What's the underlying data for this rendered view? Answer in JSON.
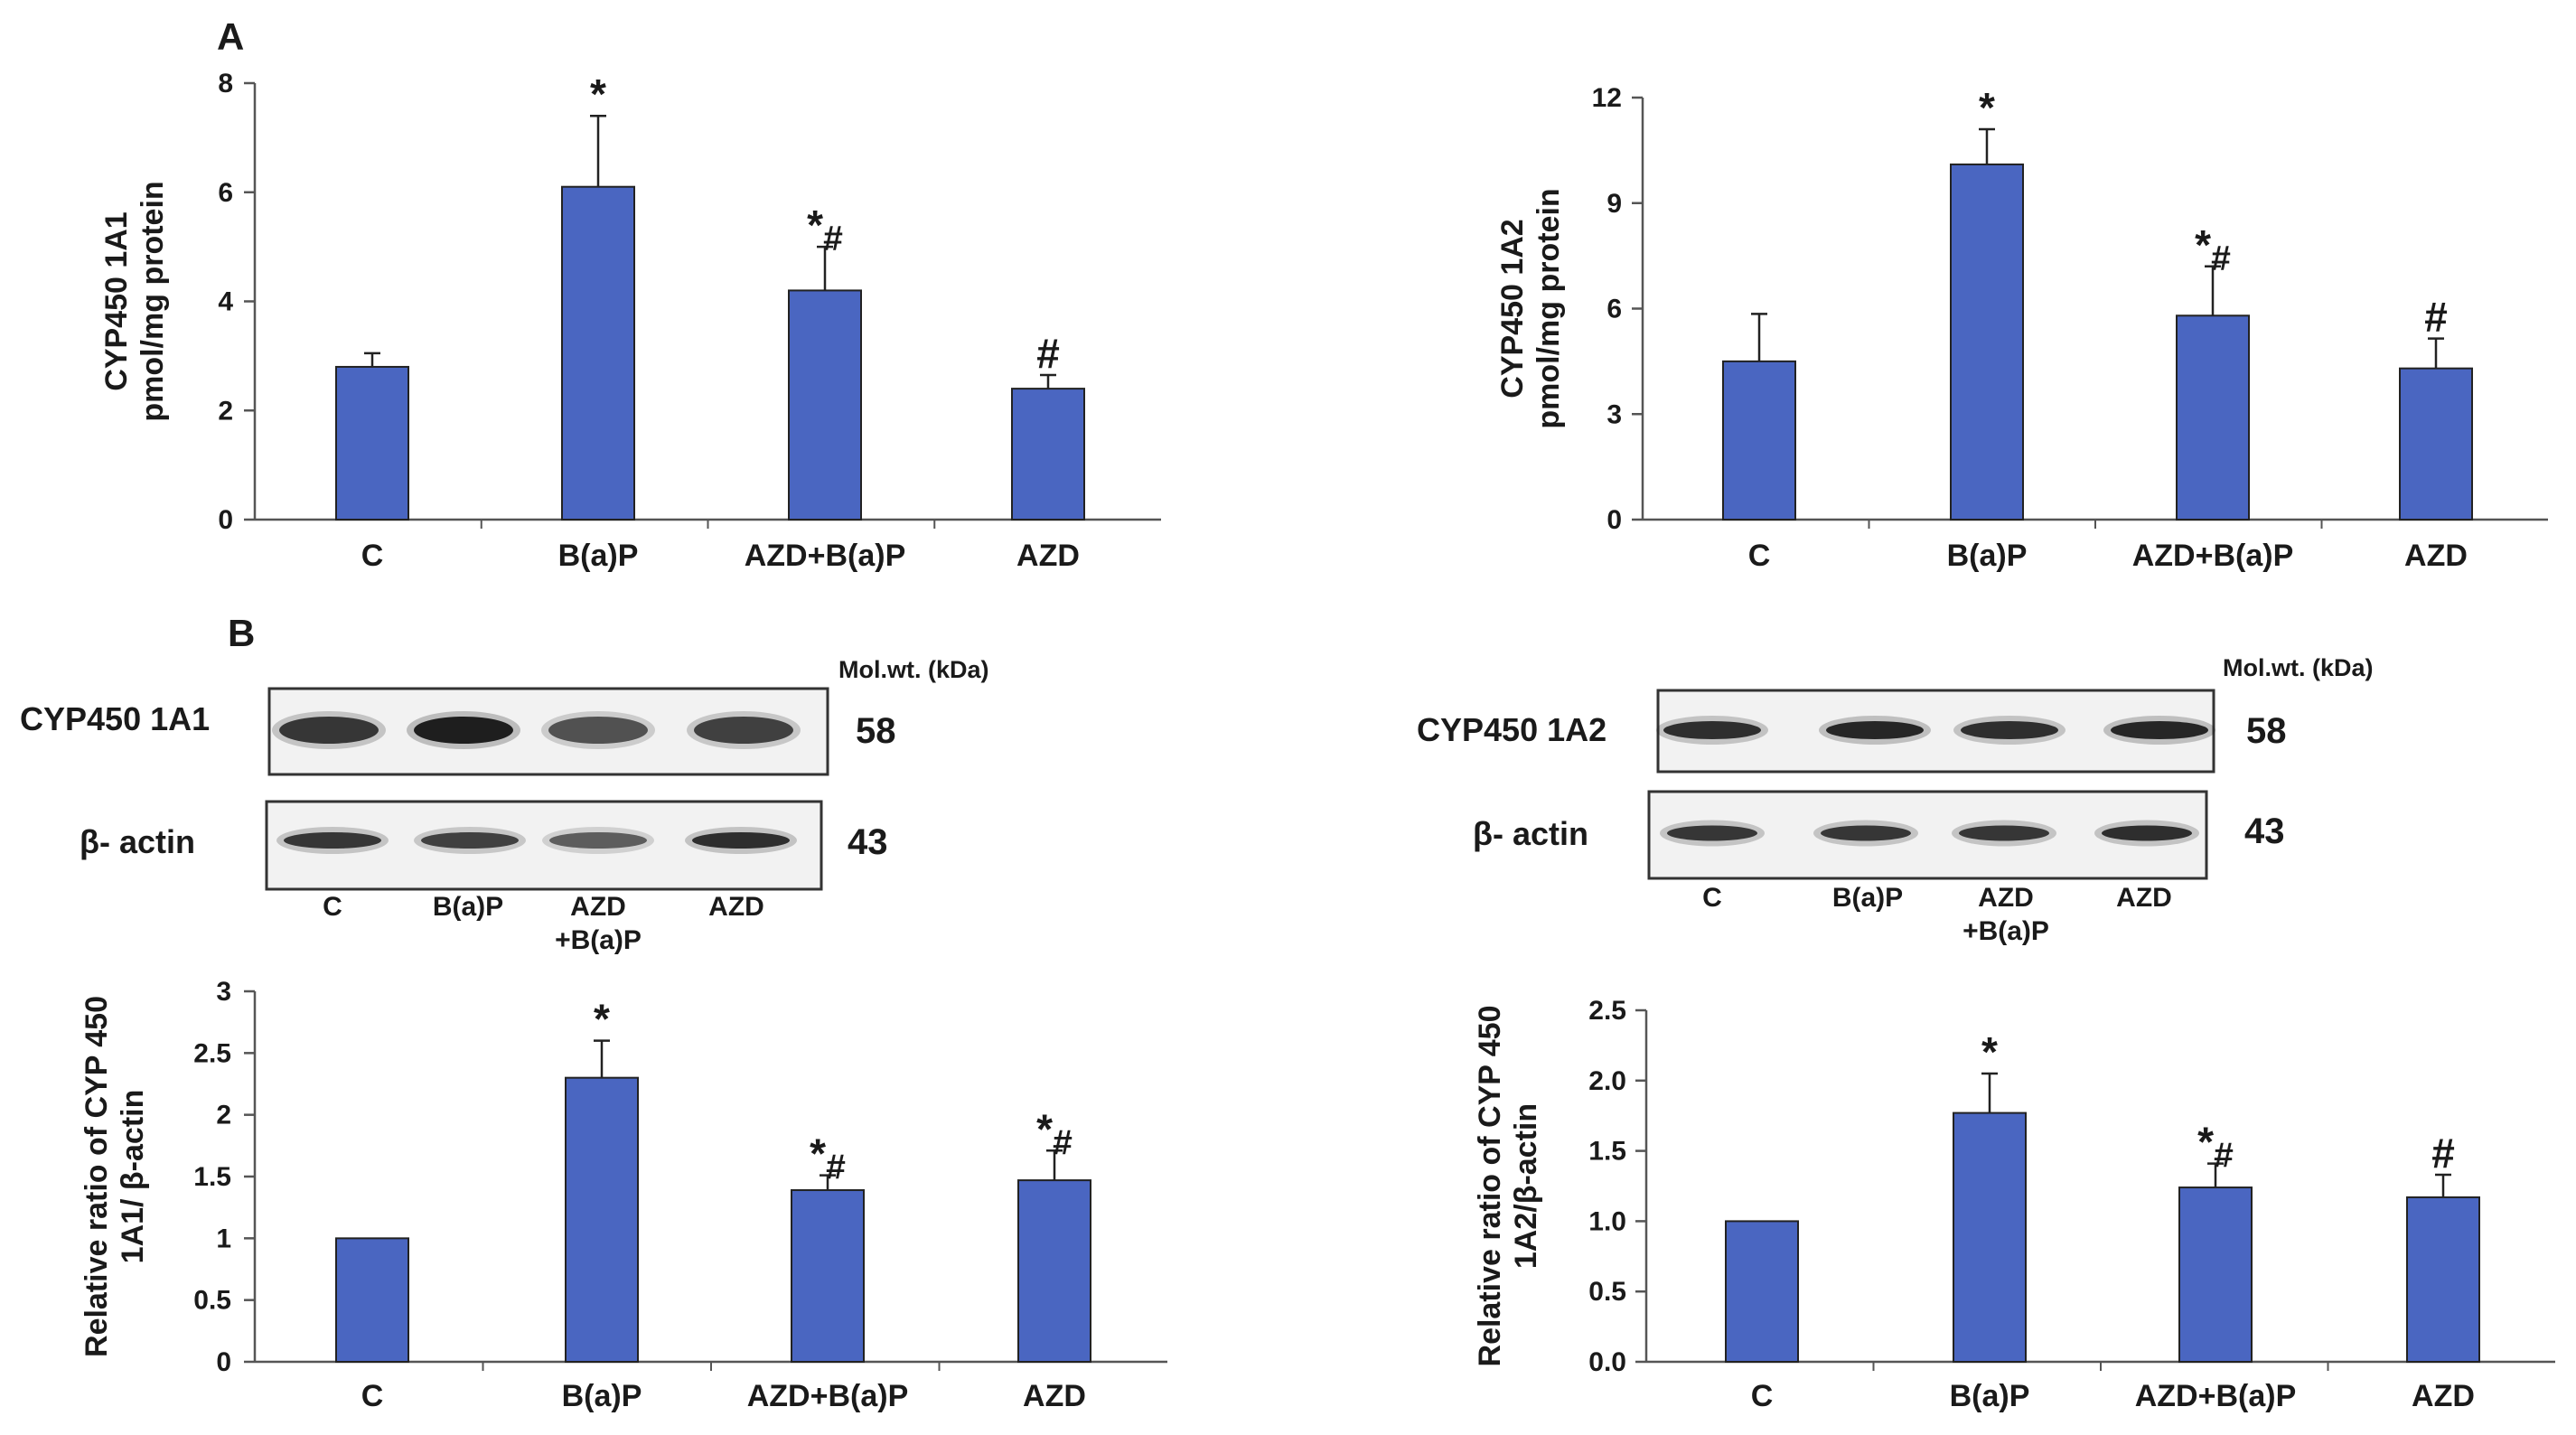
{
  "panels": {
    "a": "A",
    "b": "B"
  },
  "colors": {
    "bar": "#4a66c1",
    "axis": "#555555",
    "blot_band": "#1e1e1e",
    "blot_bg": "#f2f2f2"
  },
  "chart_data": [
    {
      "id": "cyp1a1-activity",
      "type": "bar",
      "title": "",
      "categories": [
        "C",
        "B(a)P",
        "AZD+B(a)P",
        "AZD"
      ],
      "values": [
        2.8,
        6.1,
        4.2,
        2.4
      ],
      "errors": [
        0.25,
        1.3,
        0.8,
        0.25
      ],
      "annotations": [
        "",
        "*",
        "*#",
        "#"
      ],
      "ylabel_lines": [
        "CYP450 1A1",
        "pmol/mg protein"
      ],
      "xlabel": "",
      "ylim": [
        0,
        8
      ],
      "yticks": [
        "0",
        "2",
        "4",
        "6",
        "8"
      ]
    },
    {
      "id": "cyp1a2-activity",
      "type": "bar",
      "title": "",
      "categories": [
        "C",
        "B(a)P",
        "AZD+B(a)P",
        "AZD"
      ],
      "values": [
        4.5,
        10.1,
        5.8,
        4.3
      ],
      "errors": [
        1.35,
        1.0,
        1.4,
        0.85
      ],
      "annotations": [
        "",
        "*",
        "*#",
        "#"
      ],
      "ylabel_lines": [
        "CYP450 1A2",
        "pmol/mg protein"
      ],
      "xlabel": "",
      "ylim": [
        0,
        12
      ],
      "yticks": [
        "0",
        "3",
        "6",
        "9",
        "12"
      ]
    },
    {
      "id": "cyp1a1-ratio",
      "type": "bar",
      "title": "",
      "categories": [
        "C",
        "B(a)P",
        "AZD+B(a)P",
        "AZD"
      ],
      "values": [
        1.0,
        2.3,
        1.39,
        1.47
      ],
      "errors": [
        0,
        0.3,
        0.12,
        0.24
      ],
      "annotations": [
        "",
        "*",
        "*#",
        "*#"
      ],
      "ylabel_lines": [
        "Relative ratio of CYP 450",
        "1A1/ β-actin"
      ],
      "xlabel": "",
      "ylim": [
        0,
        3
      ],
      "yticks": [
        "0",
        "0.5",
        "1",
        "1.5",
        "2",
        "2.5",
        "3"
      ]
    },
    {
      "id": "cyp1a2-ratio",
      "type": "bar",
      "title": "",
      "categories": [
        "C",
        "B(a)P",
        "AZD+B(a)P",
        "AZD"
      ],
      "values": [
        1.0,
        1.77,
        1.24,
        1.17
      ],
      "errors": [
        0,
        0.28,
        0.17,
        0.16
      ],
      "annotations": [
        "",
        "*",
        "*#",
        "#"
      ],
      "ylabel_lines": [
        "Relative ratio of CYP 450",
        "1A2/β-actin"
      ],
      "xlabel": "",
      "ylim": [
        0,
        2.5
      ],
      "yticks": [
        "0.0",
        "0.5",
        "1.0",
        "1.5",
        "2.0",
        "2.5"
      ]
    }
  ],
  "blots": {
    "left": {
      "mw_header": "Mol.wt. (kDa)",
      "target_label": "CYP450 1A1",
      "target_mw": "58",
      "actin_label": "β- actin",
      "actin_mw": "43",
      "lanes": [
        "C",
        "B(a)P",
        "AZD",
        "AZD"
      ],
      "lane_sub": [
        "",
        "",
        "+B(a)P",
        ""
      ],
      "target_intensity": [
        0.85,
        1.0,
        0.7,
        0.8
      ],
      "actin_intensity": [
        0.85,
        0.8,
        0.65,
        0.9
      ]
    },
    "right": {
      "mw_header": "Mol.wt. (kDa)",
      "target_label": "CYP450 1A2",
      "target_mw": "58",
      "actin_label": "β- actin",
      "actin_mw": "43",
      "lanes": [
        "C",
        "B(a)P",
        "AZD",
        "AZD"
      ],
      "lane_sub": [
        "",
        "",
        "+B(a)P",
        ""
      ],
      "target_intensity": [
        0.9,
        0.95,
        0.9,
        0.95
      ],
      "actin_intensity": [
        0.85,
        0.85,
        0.85,
        0.9
      ]
    }
  }
}
